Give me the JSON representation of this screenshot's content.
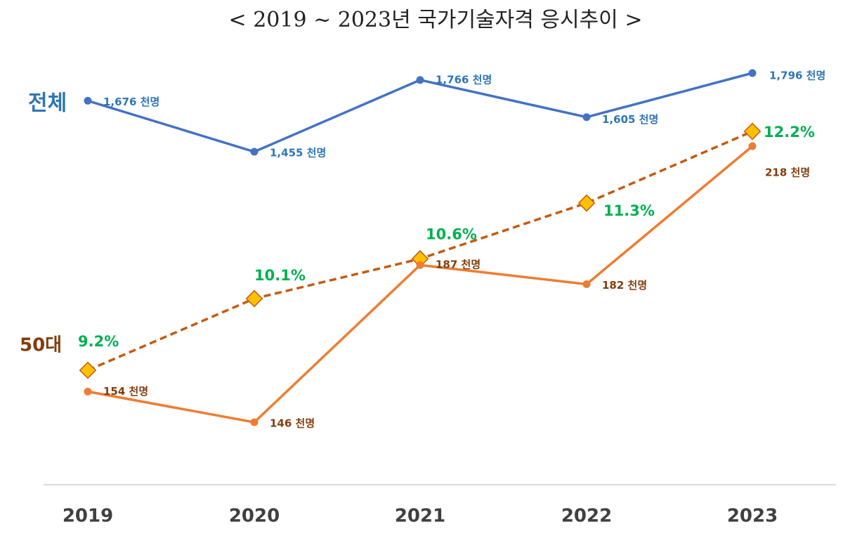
{
  "chart_data": {
    "type": "line",
    "title": "< 2019 ~ 2023년 국가기술자격 응시추이 >",
    "categories": [
      "2019",
      "2020",
      "2021",
      "2022",
      "2023"
    ],
    "series": [
      {
        "name": "전체",
        "color": "#4472c4",
        "label_color": "#2e75b6",
        "values": [
          1676,
          1455,
          1766,
          1605,
          1796
        ],
        "value_labels": [
          "1,676 천명",
          "1,455 천명",
          "1,766 천명",
          "1,605 천명",
          "1,796 천명"
        ]
      },
      {
        "name": "50대",
        "color": "#ed7d31",
        "label_color": "#843c0c",
        "values": [
          154,
          146,
          187,
          182,
          218
        ],
        "value_labels": [
          "154 천명",
          "146 천명",
          "187 천명",
          "182 천명",
          "218 천명"
        ]
      },
      {
        "color": "#c55a11",
        "label_color": "#00b050",
        "marker_color": "#ffc000",
        "dashed": true,
        "values": [
          9.2,
          10.1,
          10.6,
          11.3,
          12.2
        ],
        "value_labels": [
          "9.2%",
          "10.1%",
          "10.6%",
          "11.3%",
          "12.2%"
        ]
      }
    ]
  }
}
